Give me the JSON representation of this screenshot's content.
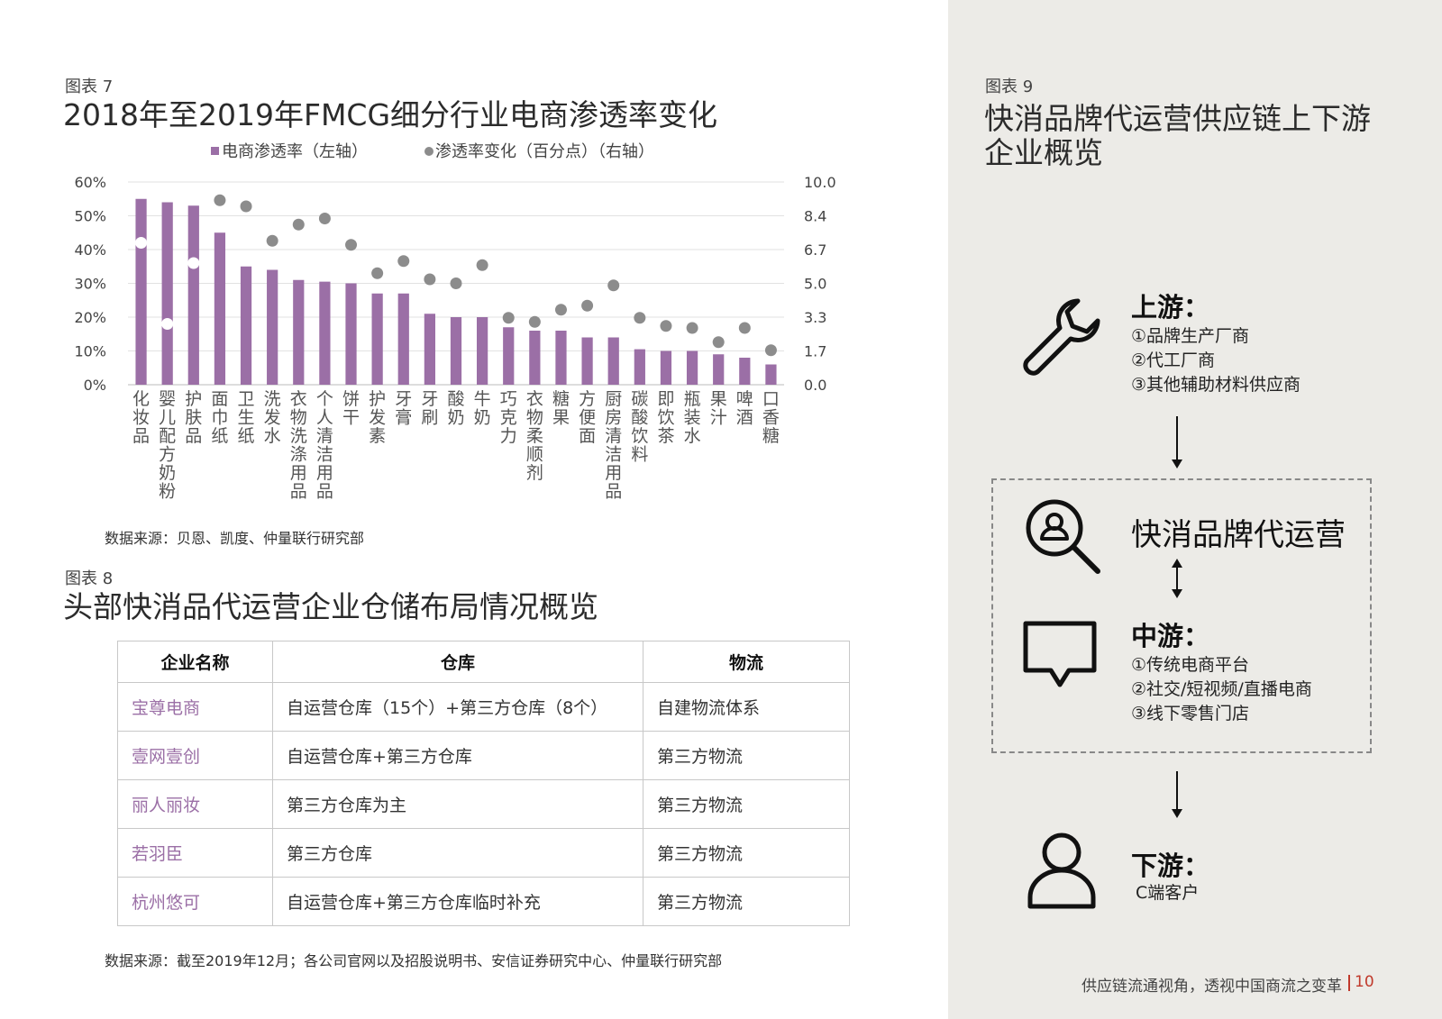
{
  "fig7": {
    "label": "图表 7",
    "title": "2018年至2019年FMCG细分行业电商渗透率变化",
    "source": "数据来源：贝恩、凯度、仲量联行研究部"
  },
  "fig8": {
    "label": "图表 8",
    "title": "头部快消品代运营企业仓储布局情况概览",
    "headers": [
      "企业名称",
      "仓库",
      "物流"
    ],
    "rows": [
      [
        "宝尊电商",
        "自运营仓库（15个）+第三方仓库（8个）",
        "自建物流体系"
      ],
      [
        "壹网壹创",
        "自运营仓库+第三方仓库",
        "第三方物流"
      ],
      [
        "丽人丽妆",
        "第三方仓库为主",
        "第三方物流"
      ],
      [
        "若羽臣",
        "第三方仓库",
        "第三方物流"
      ],
      [
        "杭州悠可",
        "自运营仓库+第三方仓库临时补充",
        "第三方物流"
      ]
    ],
    "source": "数据来源：截至2019年12月；各公司官网以及招股说明书、安信证券研究中心、仲量联行研究部"
  },
  "fig9": {
    "label": "图表 9",
    "title_line1": "快消品牌代运营供应链上下游",
    "title_line2": "企业概览",
    "upstream_title": "上游：",
    "upstream_items": [
      "①品牌生产厂商",
      "②代工厂商",
      "③其他辅助材料供应商"
    ],
    "core_title": "快消品牌代运营",
    "midstream_title": "中游：",
    "midstream_items": [
      "①传统电商平台",
      "②社交/短视频/直播电商",
      "③线下零售门店"
    ],
    "downstream_title": "下游：",
    "downstream_items": [
      "C端客户"
    ],
    "icons": [
      "wrench-icon",
      "search-user-icon",
      "chat-bubble-icon",
      "person-icon"
    ]
  },
  "footer": {
    "text": "供应链流通视角，透视中国商流之变革",
    "page": "10"
  },
  "colors": {
    "bar": "#9b6fa6",
    "dot": "#8c8c8c",
    "company": "#9b6fa6",
    "accent_red": "#c0392b",
    "sidebar_bg": "#ecebe7"
  },
  "chart_data": {
    "type": "bar",
    "categories": [
      "化妆品",
      "婴儿配方奶粉",
      "护肤品",
      "面巾纸",
      "卫生纸",
      "洗发水",
      "衣物洗涤用品",
      "个人清洁用品",
      "饼干",
      "护发素",
      "牙膏",
      "牙刷",
      "酸奶",
      "牛奶",
      "巧克力",
      "衣物柔顺剂",
      "糖果",
      "方便面",
      "厨房清洁用品",
      "碳酸饮料",
      "即饮茶",
      "瓶装水",
      "果汁",
      "啤酒",
      "口香糖"
    ],
    "series": [
      {
        "name": "电商渗透率（左轴）",
        "type": "bar",
        "axis": "left",
        "values": [
          55,
          54,
          53,
          45,
          35,
          34,
          31,
          30.5,
          30,
          27,
          27,
          21,
          20,
          20,
          17,
          16,
          16,
          14,
          14,
          10.5,
          10,
          10,
          9,
          8,
          6
        ]
      },
      {
        "name": "渗透率变化（百分点）（右轴）",
        "type": "scatter",
        "axis": "right",
        "values": [
          7.0,
          3.0,
          6.0,
          9.1,
          8.8,
          7.1,
          7.9,
          8.2,
          6.9,
          5.5,
          6.1,
          5.2,
          5.0,
          5.9,
          3.3,
          3.1,
          3.7,
          3.9,
          4.9,
          3.3,
          2.9,
          2.8,
          2.1,
          2.8,
          1.7
        ]
      }
    ],
    "y_left": {
      "ticks": [
        "0%",
        "10%",
        "20%",
        "30%",
        "40%",
        "50%",
        "60%"
      ],
      "ylim": [
        0,
        60
      ]
    },
    "y_right": {
      "ticks": [
        "0.0",
        "1.7",
        "3.3",
        "5.0",
        "6.7",
        "8.4",
        "10.0"
      ],
      "ylim": [
        0,
        10
      ]
    },
    "legend_position": "top-center",
    "grid": true
  }
}
